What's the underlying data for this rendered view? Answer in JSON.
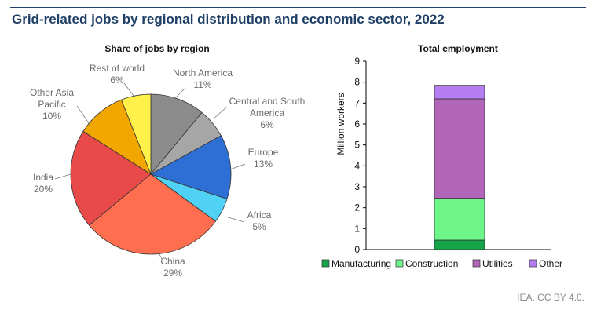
{
  "header": {
    "title": "Grid-related jobs by regional distribution and economic sector, 2022"
  },
  "footer": {
    "source": "IEA. CC BY 4.0."
  },
  "chart_data": [
    {
      "type": "pie",
      "title": "Share of jobs by region",
      "slices": [
        {
          "label": [
            "North America"
          ],
          "pct_label": "11%",
          "value": 11,
          "color": "#8c8c8c"
        },
        {
          "label": [
            "Central and South",
            "America"
          ],
          "pct_label": "6%",
          "value": 6,
          "color": "#a6a6a6"
        },
        {
          "label": [
            "Europe"
          ],
          "pct_label": "13%",
          "value": 13,
          "color": "#2e6fd6"
        },
        {
          "label": [
            "Africa"
          ],
          "pct_label": "5%",
          "value": 5,
          "color": "#4fd2f5"
        },
        {
          "label": [
            "China"
          ],
          "pct_label": "29%",
          "value": 29,
          "color": "#ff6f4f"
        },
        {
          "label": [
            "India"
          ],
          "pct_label": "20%",
          "value": 20,
          "color": "#e84a4a"
        },
        {
          "label": [
            "Other Asia",
            "Pacific"
          ],
          "pct_label": "10%",
          "value": 10,
          "color": "#f2a600"
        },
        {
          "label": [
            "Rest of world"
          ],
          "pct_label": "6%",
          "value": 6,
          "color": "#fff04a"
        }
      ]
    },
    {
      "type": "bar",
      "stacked": true,
      "title": "Total employment",
      "ylabel": "Million workers",
      "ylim": [
        0,
        9
      ],
      "yticks": [
        0,
        1,
        2,
        3,
        4,
        5,
        6,
        7,
        8,
        9
      ],
      "categories": [
        ""
      ],
      "series": [
        {
          "name": "Manufacturing",
          "values": [
            0.45
          ],
          "color": "#16a34a"
        },
        {
          "name": "Construction",
          "values": [
            2.0
          ],
          "color": "#6ef58a"
        },
        {
          "name": "Utilities",
          "values": [
            4.75
          ],
          "color": "#b266b8"
        },
        {
          "name": "Other",
          "values": [
            0.65
          ],
          "color": "#b47ef0"
        }
      ],
      "legend_position": "bottom"
    }
  ]
}
